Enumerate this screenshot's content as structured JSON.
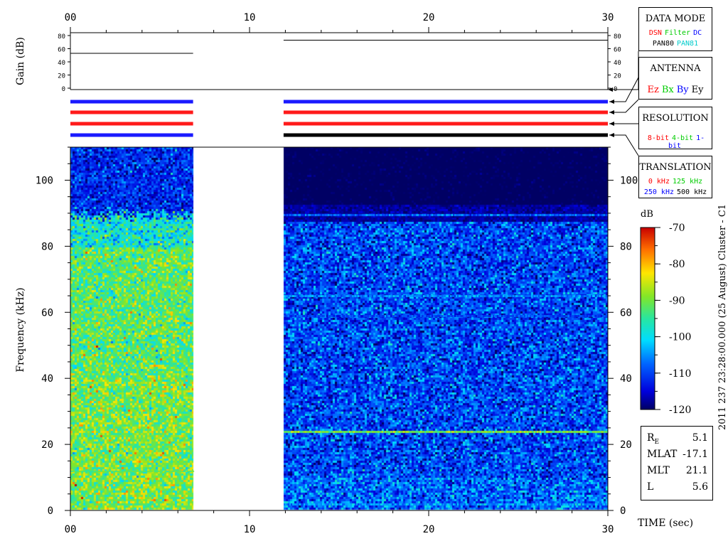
{
  "top_gain": {
    "ylabel": "Gain (dB)",
    "ticks": [
      "0",
      "20",
      "40",
      "60",
      "80"
    ],
    "segments": [
      {
        "t0": 0.0,
        "t1": 6.85,
        "gain": 53
      },
      {
        "t0": 11.9,
        "t1": 30.0,
        "gain": 73
      }
    ]
  },
  "mode_bars": {
    "segments": [
      {
        "t0": 0.0,
        "t1": 6.85,
        "colors": [
          "#1a1aff",
          "#ff1a1a",
          "#ff1a1a",
          "#1a1aff"
        ]
      },
      {
        "t0": 11.9,
        "t1": 30.0,
        "colors": [
          "#1a1aff",
          "#ff1a1a",
          "#ff1a1a",
          "#000000"
        ]
      }
    ]
  },
  "chart_data": {
    "type": "heatmap",
    "ylabel": "Frequency (kHz)",
    "xlabel": "TIME (sec)",
    "xlim": [
      0,
      30
    ],
    "ylim": [
      0,
      110
    ],
    "x_ticks": [
      "00",
      "10",
      "20",
      "30"
    ],
    "y_ticks": [
      "0",
      "20",
      "40",
      "60",
      "80",
      "100"
    ],
    "data_segments": [
      {
        "t0": 0.0,
        "t1": 6.85,
        "f_max": 110,
        "level_low_band_db": -92,
        "level_high_band_db": -112,
        "transition_khz": 90
      },
      {
        "t0": 11.9,
        "t1": 30.0,
        "f_max": 110,
        "level_low_band_db": -110,
        "level_high_band_db": -121,
        "transition_khz": 88
      }
    ],
    "spectral_lines_khz": [
      {
        "f": 89.5,
        "db": -108
      },
      {
        "f": 65,
        "db": -106
      },
      {
        "f": 59,
        "db": -110
      },
      {
        "f": 24,
        "db": -90
      },
      {
        "f": 2,
        "db": -105
      }
    ],
    "colorbar": {
      "label": "dB",
      "min": -120,
      "max": -70,
      "ticks": [
        "-70",
        "-80",
        "-90",
        "-100",
        "-110",
        "-120"
      ]
    },
    "side_title": "2011 237 23:28:00.000 (25 August)   Cluster - C1"
  },
  "legend_boxes": {
    "data_mode": {
      "title": "DATA MODE",
      "row1": [
        {
          "text": "DSN",
          "color": "#ff0000"
        },
        {
          "text": "Filter",
          "color": "#00cc00"
        },
        {
          "text": "DC",
          "color": "#0000ff"
        }
      ],
      "row2": [
        {
          "text": "PAN80",
          "color": "#000000"
        },
        {
          "text": "PAN81",
          "color": "#00cccc"
        }
      ]
    },
    "antenna": {
      "title": "ANTENNA",
      "row1": [
        {
          "text": "Ez",
          "color": "#ff0000"
        },
        {
          "text": "Bx",
          "color": "#00cc00"
        },
        {
          "text": "By",
          "color": "#0000ff"
        },
        {
          "text": "Ey",
          "color": "#000000"
        }
      ]
    },
    "resolution": {
      "title": "RESOLUTION",
      "row1": [
        {
          "text": "8-bit",
          "color": "#ff0000"
        },
        {
          "text": "4-bit",
          "color": "#00cc00"
        },
        {
          "text": "1-bit",
          "color": "#0000ff"
        }
      ]
    },
    "translation": {
      "title": "TRANSLATION",
      "row1": [
        {
          "text": "0 kHz",
          "color": "#ff0000"
        },
        {
          "text": "125 kHz",
          "color": "#00cc00"
        }
      ],
      "row2": [
        {
          "text": "250 kHz",
          "color": "#0000ff"
        },
        {
          "text": "500 kHz",
          "color": "#000000"
        }
      ]
    }
  },
  "orbit": [
    {
      "label": "R",
      "sub": "E",
      "value": "5.1"
    },
    {
      "label": "MLAT",
      "sub": "",
      "value": "-17.1"
    },
    {
      "label": "MLT",
      "sub": "",
      "value": "21.1"
    },
    {
      "label": "L",
      "sub": "",
      "value": "5.6"
    }
  ]
}
